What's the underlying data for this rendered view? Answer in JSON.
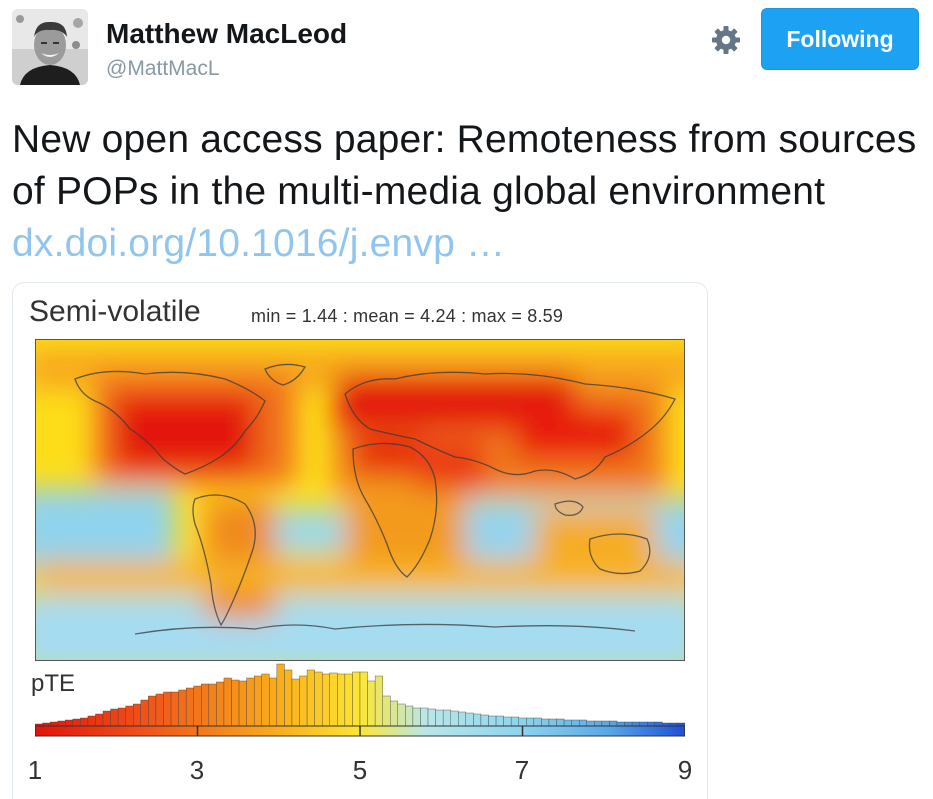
{
  "user": {
    "name": "Matthew MacLeod",
    "handle": "@MattMacL"
  },
  "follow_button": {
    "label": "Following"
  },
  "tweet": {
    "text": "New open access paper: Remoteness from sources of POPs in the multi-media global environment ",
    "link": "dx.doi.org/10.1016/j.envp …"
  },
  "figure": {
    "title": "Semi-volatile",
    "stats": "min = 1.44 : mean = 4.24 : max = 8.59",
    "colorbar_label": "pTE",
    "colorbar_ticks": [
      "1",
      "3",
      "5",
      "7",
      "9"
    ],
    "colors": {
      "high": "#e3120b",
      "mid": "#fdd80a",
      "low": "#8ed6f0",
      "lowest": "#2b5fd9"
    }
  }
}
